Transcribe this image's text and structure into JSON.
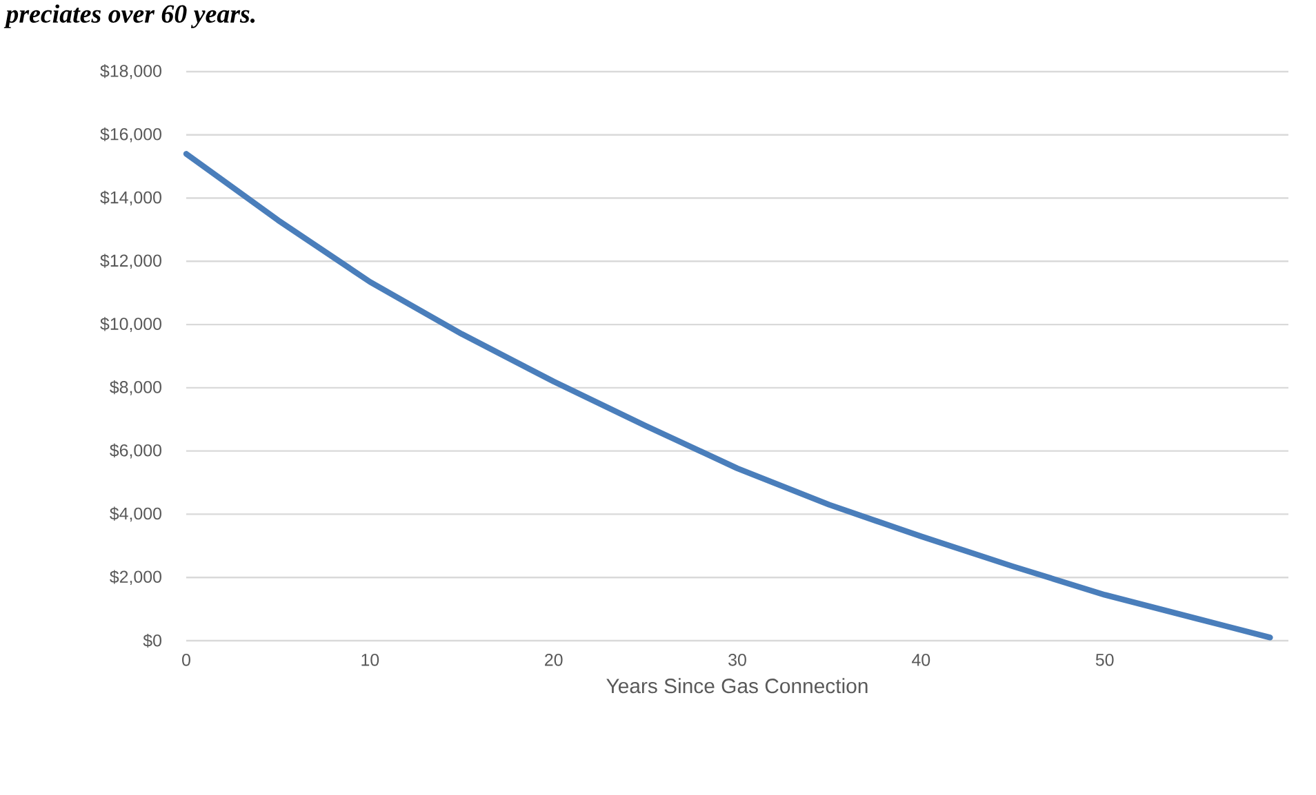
{
  "chart_data": {
    "type": "line",
    "title": "preciates over 60 years.",
    "xlabel": "Years Since Gas Connection",
    "x": [
      0,
      5,
      10,
      15,
      20,
      25,
      30,
      35,
      40,
      45,
      50,
      55,
      59
    ],
    "series": [
      {
        "color": "#4a7ebb",
        "values": [
          15400,
          13300,
          11350,
          9700,
          8200,
          6800,
          5450,
          4300,
          3300,
          2350,
          1450,
          700,
          100
        ]
      }
    ],
    "xlim": [
      0,
      60
    ],
    "xticks": [
      0,
      10,
      20,
      30,
      40,
      50
    ],
    "ylim": [
      0,
      18000
    ],
    "yticks": [
      {
        "value": 0,
        "label": "$0"
      },
      {
        "value": 2000,
        "label": "$2,000"
      },
      {
        "value": 4000,
        "label": "$4,000"
      },
      {
        "value": 6000,
        "label": "$6,000"
      },
      {
        "value": 8000,
        "label": "$8,000"
      },
      {
        "value": 10000,
        "label": "$10,000"
      },
      {
        "value": 12000,
        "label": "$12,000"
      },
      {
        "value": 14000,
        "label": "$14,000"
      },
      {
        "value": 16000,
        "label": "$16,000"
      },
      {
        "value": 18000,
        "label": "$18,000"
      }
    ],
    "grid": "y"
  }
}
